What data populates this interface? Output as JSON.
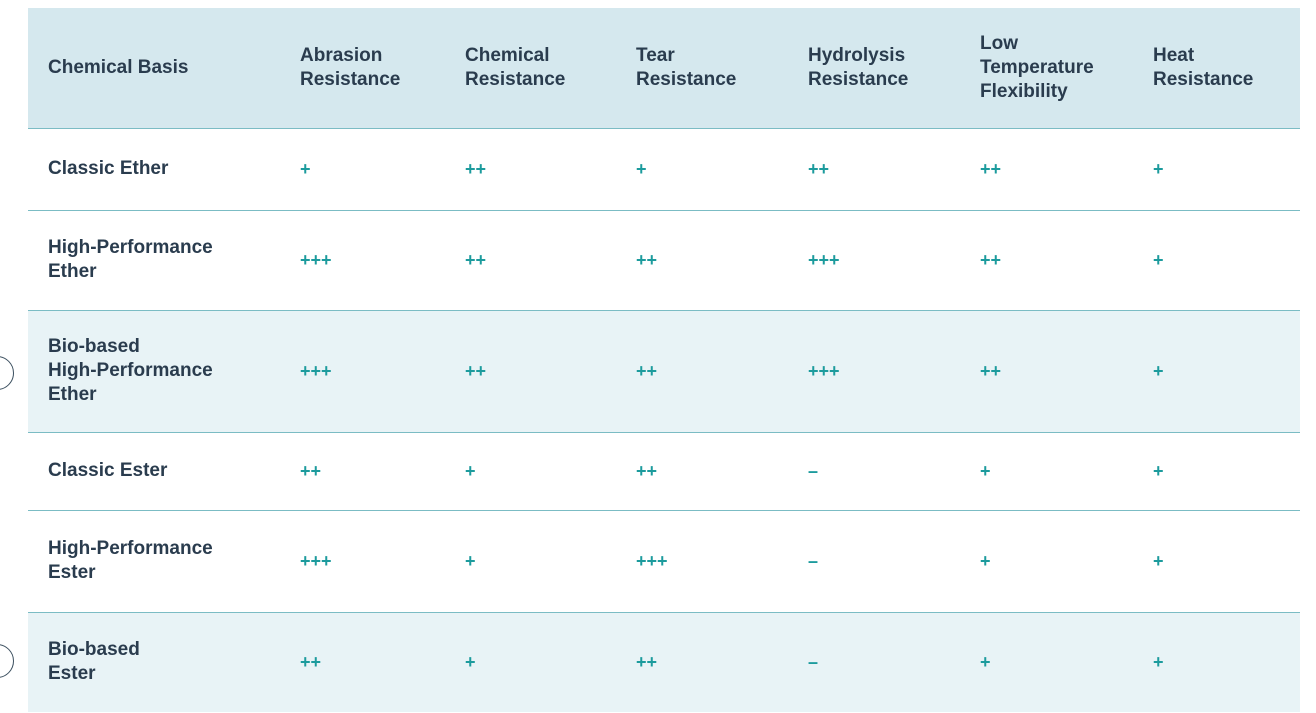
{
  "table": {
    "header": [
      "Chemical Basis",
      "Abrasion\nResistance",
      "Chemical\nResistance",
      "Tear\nResistance",
      "Hydrolysis\nResistance",
      "Low\nTemperature\nFlexibility",
      "Heat\nResistance"
    ],
    "rows": [
      [
        "Classic Ether",
        "+",
        "++",
        "+",
        "++",
        "++",
        "+"
      ],
      [
        "High-Performance\nEther",
        "+++",
        "++",
        "++",
        "+++",
        "++",
        "+"
      ],
      [
        "Bio-based\nHigh-Performance\nEther",
        "+++",
        "++",
        "++",
        "+++",
        "++",
        "+"
      ],
      [
        "Classic Ester",
        "++",
        "+",
        "++",
        "–",
        "+",
        "+"
      ],
      [
        "High-Performance\nEster",
        "+++",
        "+",
        "+++",
        "–",
        "+",
        "+"
      ],
      [
        "Bio-based\nEster",
        "++",
        "+",
        "++",
        "–",
        "+",
        "+"
      ]
    ]
  }
}
